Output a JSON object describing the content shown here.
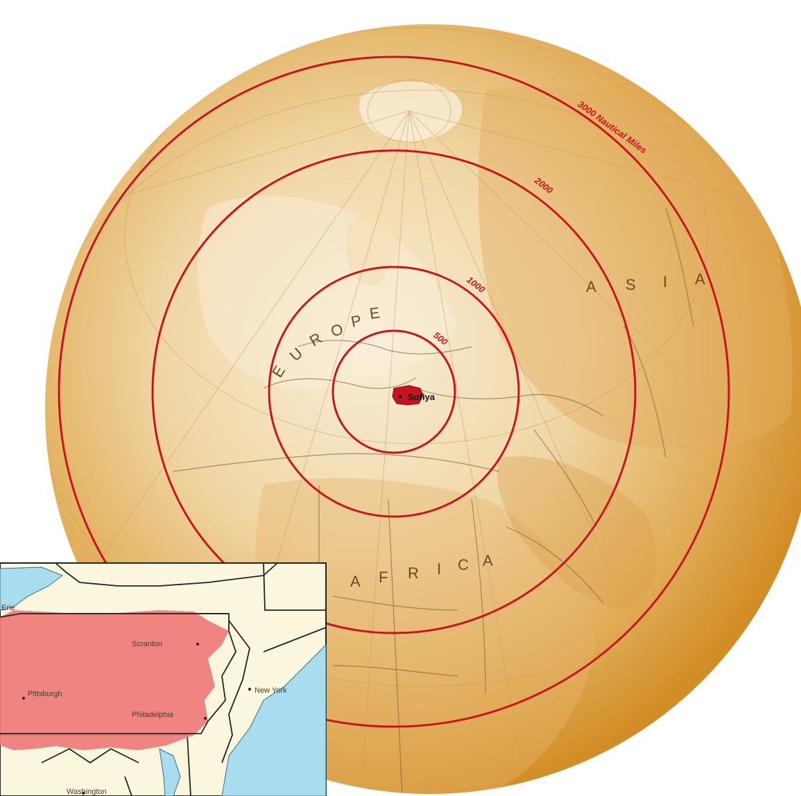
{
  "globe": {
    "rings": [
      {
        "label": "500"
      },
      {
        "label": "1000"
      },
      {
        "label": "2000"
      },
      {
        "label": "3000 Nautical Miles"
      }
    ],
    "capital": "Sofiya",
    "continents": {
      "europe": [
        "E",
        "U",
        "R",
        "O",
        "P",
        "E"
      ],
      "asia": [
        "A",
        "S",
        "I",
        "A"
      ],
      "africa": [
        "A",
        "F",
        "R",
        "I",
        "C",
        "A"
      ]
    }
  },
  "inset": {
    "cities": {
      "erie": "Erie",
      "scranton": "Scranton",
      "pittsburgh": "Pittsburgh",
      "philadelphia": "Philadelphia",
      "new_york": "New York",
      "washington": "Washington"
    }
  },
  "colors": {
    "globe_light": "#f7ead0",
    "globe_dark": "#d9962e",
    "ring": "#c8141e",
    "highlight": "#c8141e",
    "inset_land": "#fbf7df",
    "inset_state": "#ee7a78",
    "inset_water": "#a8dcef"
  }
}
